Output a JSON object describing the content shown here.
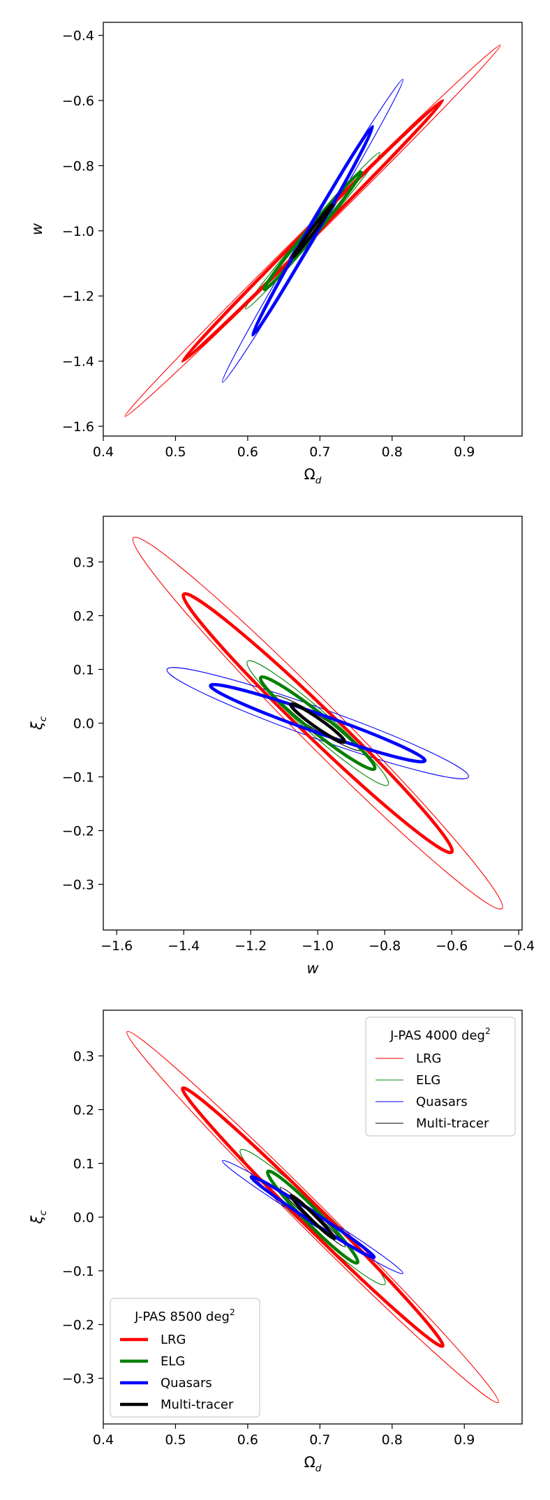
{
  "chart_data": [
    {
      "type": "contour",
      "xlabel": "Ωd",
      "ylabel": "w",
      "xlim": [
        0.4,
        0.98
      ],
      "ylim": [
        -1.63,
        -0.36
      ],
      "xticks": [
        "0.4",
        "0.5",
        "0.6",
        "0.7",
        "0.8",
        "0.9"
      ],
      "yticks": [
        "−1.6",
        "−1.4",
        "−1.2",
        "−1.0",
        "−0.8",
        "−0.6",
        "−0.4"
      ],
      "series": [
        {
          "survey": "J-PAS 4000 deg²",
          "tracer": "LRG",
          "color": "#ff0000",
          "line": "thin",
          "center": [
            0.69,
            -1.0
          ],
          "major_end": [
            0.95,
            -0.43
          ],
          "minor_end": [
            0.703,
            -1.0
          ]
        },
        {
          "survey": "J-PAS 4000 deg²",
          "tracer": "ELG",
          "color": "#008000",
          "line": "thin",
          "center": [
            0.69,
            -1.0
          ],
          "major_end": [
            0.783,
            -0.76
          ],
          "minor_end": [
            0.7,
            -1.0
          ]
        },
        {
          "survey": "J-PAS 4000 deg²",
          "tracer": "Quasars",
          "color": "#0000ff",
          "line": "thin",
          "center": [
            0.69,
            -1.0
          ],
          "major_end": [
            0.815,
            -0.535
          ],
          "minor_end": [
            0.7,
            -1.0
          ]
        },
        {
          "survey": "J-PAS 4000 deg²",
          "tracer": "Multi-tracer",
          "color": "#000000",
          "line": "thin",
          "center": [
            0.69,
            -1.0
          ],
          "major_end": [
            0.732,
            -0.87
          ],
          "minor_end": [
            0.696,
            -1.0
          ]
        },
        {
          "survey": "J-PAS 8500 deg²",
          "tracer": "LRG",
          "color": "#ff0000",
          "line": "thick",
          "center": [
            0.69,
            -1.0
          ],
          "major_end": [
            0.87,
            -0.6
          ],
          "minor_end": [
            0.699,
            -1.0
          ]
        },
        {
          "survey": "J-PAS 8500 deg²",
          "tracer": "ELG",
          "color": "#008000",
          "line": "thick",
          "center": [
            0.69,
            -1.0
          ],
          "major_end": [
            0.757,
            -0.82
          ],
          "minor_end": [
            0.698,
            -1.0
          ]
        },
        {
          "survey": "J-PAS 8500 deg²",
          "tracer": "Quasars",
          "color": "#0000ff",
          "line": "thick",
          "center": [
            0.69,
            -1.0
          ],
          "major_end": [
            0.773,
            -0.68
          ],
          "minor_end": [
            0.697,
            -1.0
          ]
        },
        {
          "survey": "J-PAS 8500 deg²",
          "tracer": "Multi-tracer",
          "color": "#000000",
          "line": "thick",
          "center": [
            0.69,
            -1.0
          ],
          "major_end": [
            0.717,
            -0.92
          ],
          "minor_end": [
            0.693,
            -1.0
          ]
        }
      ]
    },
    {
      "type": "contour",
      "xlabel": "w",
      "ylabel": "ξc",
      "xlim": [
        -1.64,
        -0.39
      ],
      "ylim": [
        -0.385,
        0.385
      ],
      "xticks": [
        "−1.6",
        "−1.4",
        "−1.2",
        "−1.0",
        "−0.8",
        "−0.6",
        "−0.4"
      ],
      "yticks": [
        "−0.3",
        "−0.2",
        "−0.1",
        "0.0",
        "0.1",
        "0.2",
        "0.3"
      ],
      "series": [
        {
          "survey": "J-PAS 4000 deg²",
          "tracer": "LRG",
          "color": "#ff0000",
          "line": "thin",
          "center": [
            -1.0,
            0.0
          ],
          "major_end": [
            -0.45,
            -0.345
          ],
          "minor_end": [
            -1.0,
            0.055
          ]
        },
        {
          "survey": "J-PAS 4000 deg²",
          "tracer": "ELG",
          "color": "#008000",
          "line": "thin",
          "center": [
            -1.0,
            0.0
          ],
          "major_end": [
            -0.79,
            -0.115
          ],
          "minor_end": [
            -1.0,
            0.03
          ]
        },
        {
          "survey": "J-PAS 4000 deg²",
          "tracer": "Quasars",
          "color": "#0000ff",
          "line": "thin",
          "center": [
            -1.0,
            0.0
          ],
          "major_end": [
            -0.55,
            -0.1
          ],
          "minor_end": [
            -1.0,
            0.03
          ]
        },
        {
          "survey": "J-PAS 4000 deg²",
          "tracer": "Multi-tracer",
          "color": "#000000",
          "line": "thin",
          "center": [
            -1.0,
            0.0
          ],
          "major_end": [
            -0.87,
            -0.05
          ],
          "minor_end": [
            -1.0,
            0.015
          ]
        },
        {
          "survey": "J-PAS 8500 deg²",
          "tracer": "LRG",
          "color": "#ff0000",
          "line": "thick",
          "center": [
            -1.0,
            0.0
          ],
          "major_end": [
            -0.6,
            -0.24
          ],
          "minor_end": [
            -1.0,
            0.04
          ]
        },
        {
          "survey": "J-PAS 8500 deg²",
          "tracer": "ELG",
          "color": "#008000",
          "line": "thick",
          "center": [
            -1.0,
            0.0
          ],
          "major_end": [
            -0.83,
            -0.085
          ],
          "minor_end": [
            -1.0,
            0.022
          ]
        },
        {
          "survey": "J-PAS 8500 deg²",
          "tracer": "Quasars",
          "color": "#0000ff",
          "line": "thick",
          "center": [
            -1.0,
            0.0
          ],
          "major_end": [
            -0.68,
            -0.07
          ],
          "minor_end": [
            -1.0,
            0.018
          ]
        },
        {
          "survey": "J-PAS 8500 deg²",
          "tracer": "Multi-tracer",
          "color": "#000000",
          "line": "thick",
          "center": [
            -1.0,
            0.0
          ],
          "major_end": [
            -0.92,
            -0.035
          ],
          "minor_end": [
            -1.0,
            0.01
          ]
        }
      ]
    },
    {
      "type": "contour",
      "xlabel": "Ωd",
      "ylabel": "ξc",
      "xlim": [
        0.4,
        0.98
      ],
      "ylim": [
        -0.385,
        0.385
      ],
      "xticks": [
        "0.4",
        "0.5",
        "0.6",
        "0.7",
        "0.8",
        "0.9"
      ],
      "yticks": [
        "−0.3",
        "−0.2",
        "−0.1",
        "0.0",
        "0.1",
        "0.2",
        "0.3"
      ],
      "legends": [
        {
          "title": "J-PAS 4000 deg",
          "title_sup": "2",
          "placement": "top-right",
          "line": "thin",
          "entries": [
            {
              "label": "LRG",
              "color": "#ff0000"
            },
            {
              "label": "ELG",
              "color": "#008000"
            },
            {
              "label": "Quasars",
              "color": "#0000ff"
            },
            {
              "label": "Multi-tracer",
              "color": "#000000"
            }
          ]
        },
        {
          "title": "J-PAS 8500 deg",
          "title_sup": "2",
          "placement": "bottom-left",
          "line": "thick",
          "entries": [
            {
              "label": "LRG",
              "color": "#ff0000"
            },
            {
              "label": "ELG",
              "color": "#008000"
            },
            {
              "label": "Quasars",
              "color": "#0000ff"
            },
            {
              "label": "Multi-tracer",
              "color": "#000000"
            }
          ]
        }
      ],
      "series": [
        {
          "survey": "J-PAS 4000 deg²",
          "tracer": "LRG",
          "color": "#ff0000",
          "line": "thin",
          "center": [
            0.69,
            0.0
          ],
          "major_end": [
            0.947,
            -0.345
          ],
          "minor_end": [
            0.69,
            0.036
          ]
        },
        {
          "survey": "J-PAS 4000 deg²",
          "tracer": "ELG",
          "color": "#008000",
          "line": "thin",
          "center": [
            0.69,
            0.0
          ],
          "major_end": [
            0.79,
            -0.125
          ],
          "minor_end": [
            0.69,
            0.03
          ]
        },
        {
          "survey": "J-PAS 4000 deg²",
          "tracer": "Quasars",
          "color": "#0000ff",
          "line": "thin",
          "center": [
            0.69,
            0.0
          ],
          "major_end": [
            0.815,
            -0.105
          ],
          "minor_end": [
            0.69,
            0.014
          ]
        },
        {
          "survey": "J-PAS 4000 deg²",
          "tracer": "Multi-tracer",
          "color": "#000000",
          "line": "thin",
          "center": [
            0.69,
            0.0
          ],
          "major_end": [
            0.735,
            -0.055
          ],
          "minor_end": [
            0.69,
            0.01
          ]
        },
        {
          "survey": "J-PAS 8500 deg²",
          "tracer": "LRG",
          "color": "#ff0000",
          "line": "thick",
          "center": [
            0.69,
            0.0
          ],
          "major_end": [
            0.87,
            -0.24
          ],
          "minor_end": [
            0.69,
            0.028
          ]
        },
        {
          "survey": "J-PAS 8500 deg²",
          "tracer": "ELG",
          "color": "#008000",
          "line": "thick",
          "center": [
            0.69,
            0.0
          ],
          "major_end": [
            0.752,
            -0.085
          ],
          "minor_end": [
            0.69,
            0.02
          ]
        },
        {
          "survey": "J-PAS 8500 deg²",
          "tracer": "Quasars",
          "color": "#0000ff",
          "line": "thick",
          "center": [
            0.69,
            0.0
          ],
          "major_end": [
            0.775,
            -0.075
          ],
          "minor_end": [
            0.69,
            0.01
          ]
        },
        {
          "survey": "J-PAS 8500 deg²",
          "tracer": "Multi-tracer",
          "color": "#000000",
          "line": "thick",
          "center": [
            0.69,
            0.0
          ],
          "major_end": [
            0.72,
            -0.04
          ],
          "minor_end": [
            0.69,
            0.007
          ]
        }
      ]
    }
  ]
}
